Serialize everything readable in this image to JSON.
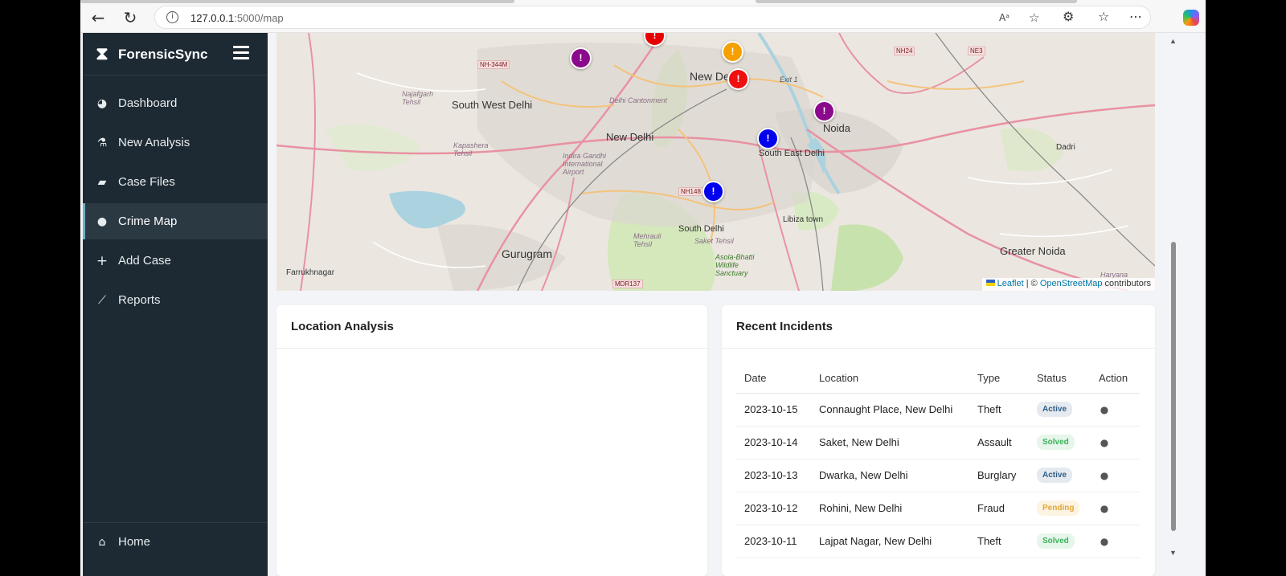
{
  "browser": {
    "url_host": "127.0.0.1",
    "url_rest": ":5000/map"
  },
  "sidebar": {
    "brand": "ForensicSync",
    "items": [
      {
        "label": "Dashboard",
        "icon": "dashboard-icon"
      },
      {
        "label": "New Analysis",
        "icon": "microscope-icon"
      },
      {
        "label": "Case Files",
        "icon": "folder-icon"
      },
      {
        "label": "Crime Map",
        "icon": "map-pin-icon",
        "active": true
      },
      {
        "label": "Add Case",
        "icon": "plus-icon"
      },
      {
        "label": "Reports",
        "icon": "chart-line-icon"
      }
    ],
    "home_label": "Home"
  },
  "map": {
    "places": {
      "south_west_delhi": "South West Delhi",
      "new_delhi_center": "New Del",
      "new_delhi": "New Delhi",
      "noida": "Noida",
      "south_east_delhi": "South East Delhi",
      "gurugram": "Gurugram",
      "south_delhi": "South Delhi",
      "greater_noida": "Greater Noida",
      "farrukhnagar": "Farrukhnagar",
      "dadri": "Dadri",
      "libiza_town": "Libiza town",
      "delhi_cantonment": "Delhi Cantonment",
      "airport": "Indira Gandhi International Airport",
      "najafgarh": "Najafgarh Tehsil",
      "kapashera": "Kapashera Tehsil",
      "mehrauli": "Mehrauli Tehsil",
      "saket_tehsil": "Saket Tehsil",
      "asola": "Asola-Bhatti Wildlife Sanctuary",
      "exit1": "Exit 1",
      "haryana": "Haryana"
    },
    "roads": {
      "nh344m": "NH-344M",
      "nh24": "NH24",
      "ne3": "NE3",
      "nh148": "NH148",
      "mdr137": "MDR137"
    },
    "markers": [
      {
        "label": "!",
        "color": "#e60000"
      },
      {
        "label": "!",
        "color": "#8b0a8b"
      },
      {
        "label": "!",
        "color": "#f5a000"
      },
      {
        "label": "!",
        "color": "#f01010"
      },
      {
        "label": "!",
        "color": "#8b0a8b"
      },
      {
        "label": "!",
        "color": "#0000ee"
      },
      {
        "label": "!",
        "color": "#0000ee"
      }
    ],
    "attribution": {
      "leaflet": "Leaflet",
      "sep": " | © ",
      "osm": "OpenStreetMap",
      "suffix": " contributors"
    }
  },
  "location_analysis": {
    "title": "Location Analysis"
  },
  "incidents": {
    "title": "Recent Incidents",
    "columns": [
      "Date",
      "Location",
      "Type",
      "Status",
      "Action"
    ],
    "rows": [
      {
        "date": "2023-10-15",
        "location": "Connaught Place, New Delhi",
        "type": "Theft",
        "status": "Active"
      },
      {
        "date": "2023-10-14",
        "location": "Saket, New Delhi",
        "type": "Assault",
        "status": "Solved"
      },
      {
        "date": "2023-10-13",
        "location": "Dwarka, New Delhi",
        "type": "Burglary",
        "status": "Active"
      },
      {
        "date": "2023-10-12",
        "location": "Rohini, New Delhi",
        "type": "Fraud",
        "status": "Pending"
      },
      {
        "date": "2023-10-11",
        "location": "Lajpat Nagar, New Delhi",
        "type": "Theft",
        "status": "Solved"
      }
    ]
  }
}
